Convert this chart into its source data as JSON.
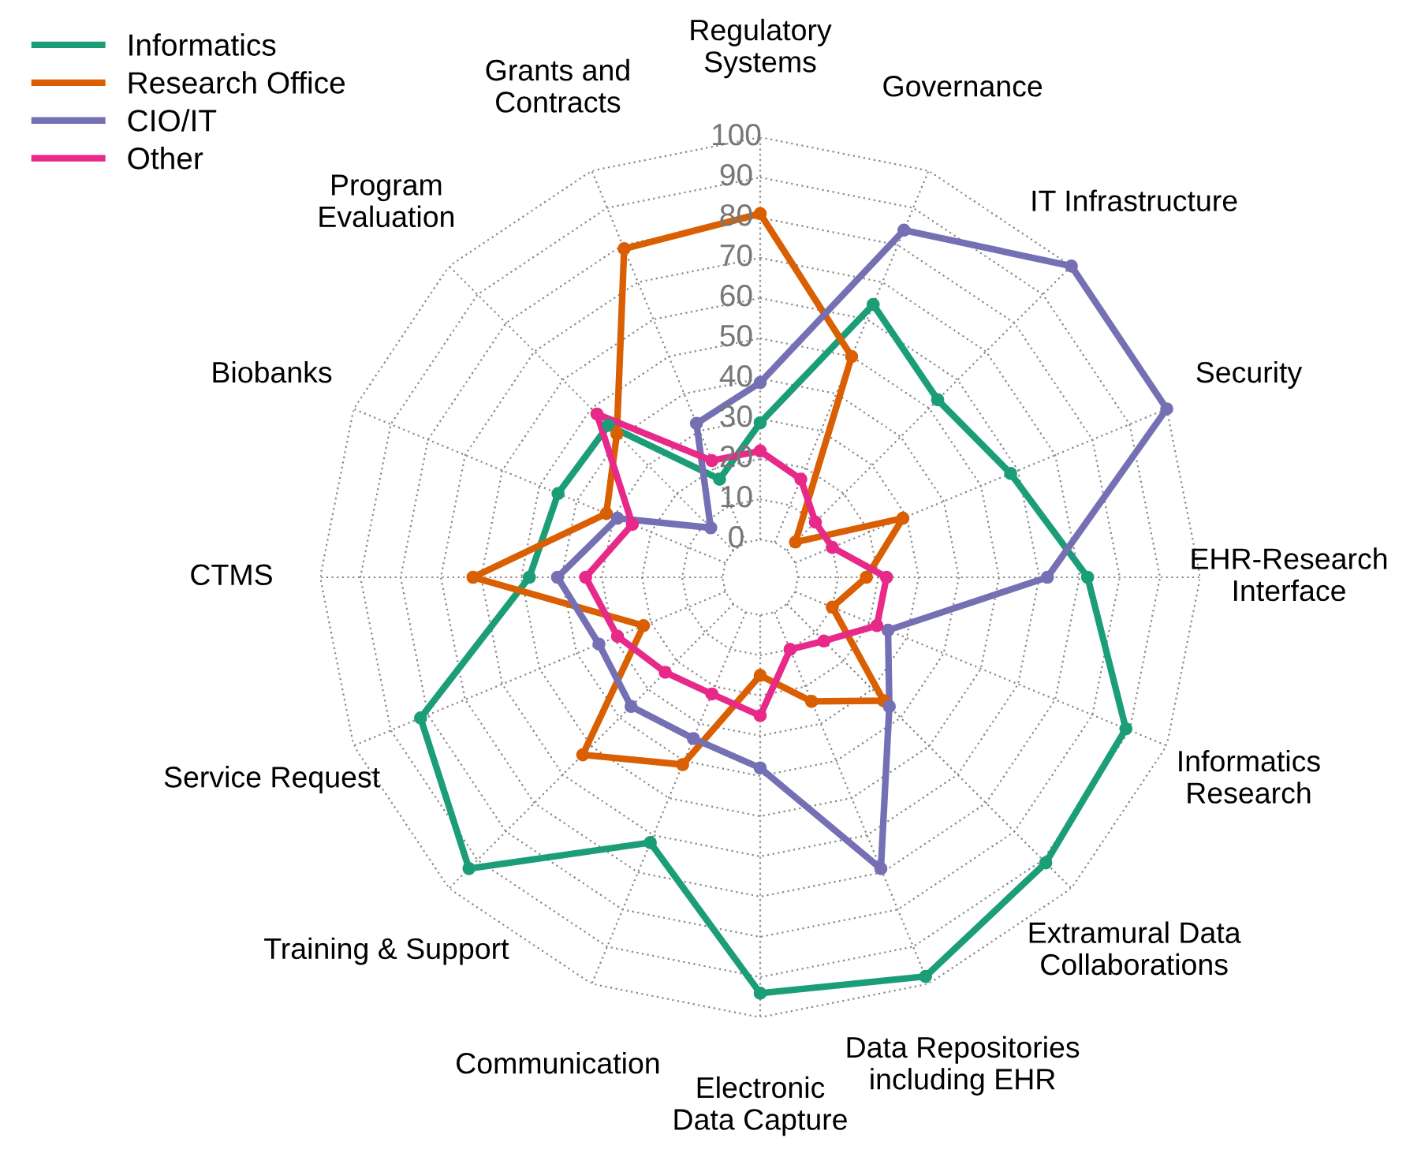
{
  "chart_data": {
    "type": "radar",
    "categories": [
      "Regulatory\nSystems",
      "Governance",
      "IT Infrastructure",
      "Security",
      "EHR-Research\nInterface",
      "Informatics\nResearch",
      "Extramural Data\nCollaborations",
      "Data Repositories\nincluding EHR",
      "Electronic\nData Capture",
      "Communication",
      "Training & Support",
      "Service Request",
      "CTMS",
      "Biobanks",
      "Program\nEvaluation",
      "Grants and\nContracts"
    ],
    "series": [
      {
        "name": "Informatics",
        "color": "#1b9e77",
        "values": [
          29,
          64,
          53,
          58,
          72,
          89,
          91,
          98,
          94,
          62,
          93,
          82,
          48,
          45,
          44,
          17
        ]
      },
      {
        "name": "Research Office",
        "color": "#d95f02",
        "values": [
          81,
          50,
          3,
          29,
          17,
          10,
          34,
          24,
          15,
          41,
          53,
          22,
          62,
          32,
          41,
          79
        ]
      },
      {
        "name": "CIO/IT",
        "color": "#7570b3",
        "values": [
          39,
          84,
          100,
          100,
          62,
          25,
          36,
          69,
          38,
          34,
          36,
          34,
          41,
          29,
          8,
          32
        ]
      },
      {
        "name": "Other",
        "color": "#e7298a",
        "values": [
          22,
          17,
          10,
          10,
          22,
          22,
          13,
          10,
          25,
          22,
          24,
          29,
          34,
          25,
          48,
          22
        ]
      }
    ],
    "ylim": [
      -9.4,
      100
    ],
    "yticks": [
      0,
      10,
      20,
      30,
      40,
      50,
      60,
      70,
      80,
      90,
      100
    ],
    "grid": true,
    "legend": "top left",
    "marker": "circle",
    "line_style": "solid"
  }
}
